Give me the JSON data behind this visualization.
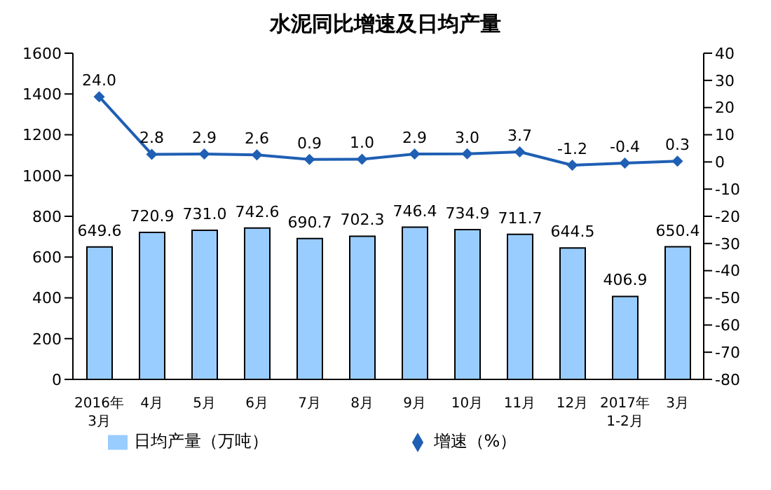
{
  "chart_data": {
    "type": "bar",
    "title": "水泥同比增速及日均产量",
    "categories": [
      "2016年\n3月",
      "4月",
      "5月",
      "6月",
      "7月",
      "8月",
      "9月",
      "10月",
      "11月",
      "12月",
      "2017年\n1-2月",
      "3月"
    ],
    "series": [
      {
        "name": "日均产量（万吨）",
        "color": "#99ccff",
        "values": [
          649.6,
          720.9,
          731.0,
          742.6,
          690.7,
          702.3,
          746.4,
          734.9,
          711.7,
          644.5,
          406.9,
          650.4
        ],
        "value_labels": [
          "649.6",
          "720.9",
          "731.0",
          "742.6",
          "690.7",
          "702.3",
          "746.4",
          "734.9",
          "711.7",
          "644.5",
          "406.9",
          "650.4"
        ]
      },
      {
        "name": "增速（%）",
        "type": "line",
        "axis": "y2",
        "color": "#1f5fb4",
        "marker": "diamond",
        "values": [
          24.0,
          2.8,
          2.9,
          2.6,
          0.9,
          1.0,
          2.9,
          3.0,
          3.7,
          -1.2,
          -0.4,
          0.3
        ],
        "value_labels": [
          "24.0",
          "2.8",
          "2.9",
          "2.6",
          "0.9",
          "1.0",
          "2.9",
          "3.0",
          "3.7",
          "-1.2",
          "-0.4",
          "0.3"
        ]
      }
    ],
    "ylim": [
      0,
      1600
    ],
    "yticks": [
      0,
      200,
      400,
      600,
      800,
      1000,
      1200,
      1400,
      1600
    ],
    "y2lim": [
      -80,
      40
    ],
    "y2ticks": [
      -80,
      -70,
      -60,
      -50,
      -40,
      -30,
      -20,
      -10,
      0,
      10,
      20,
      30,
      40
    ],
    "grid": false,
    "legend": "bottom"
  }
}
